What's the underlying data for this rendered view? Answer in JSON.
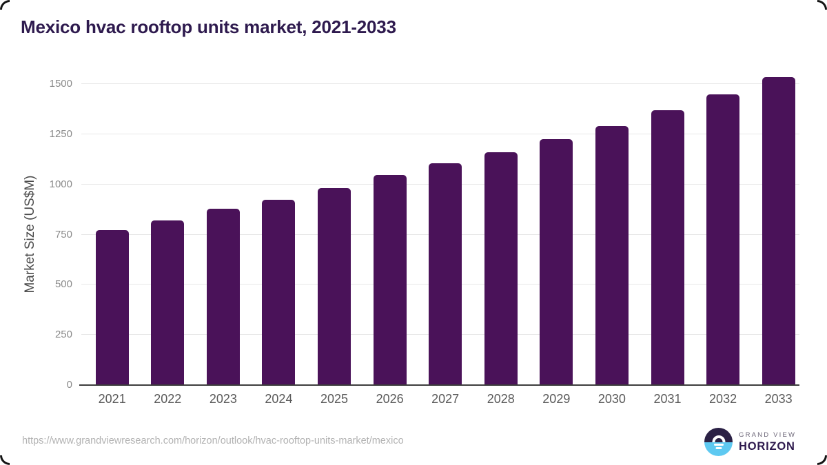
{
  "title": "Mexico hvac rooftop units market, 2021-2033",
  "source_url": "https://www.grandviewresearch.com/horizon/outlook/hvac-rooftop-units-market/mexico",
  "logo": {
    "line1": "GRAND VIEW",
    "line2": "HORIZON",
    "mark": "sunrise-over-horizon-icon"
  },
  "colors": {
    "bar_color": "#4a1259",
    "title_color": "#2e1a4e",
    "grid_color": "#e7e7e7",
    "axis_color": "#3c3c3c",
    "ytick_color": "#8a8a8a",
    "xlabel_color": "#5a5a5a",
    "ylabel_color": "#4a4a4a",
    "url_color": "#b2b2b2",
    "logo_dark": "#2b2145",
    "logo_blue": "#5ec9f1",
    "logo_gray": "#6b6577"
  },
  "chart_data": {
    "type": "bar",
    "title": "Mexico hvac rooftop units market, 2021-2033",
    "xlabel": "",
    "ylabel": "Market Size (US$M)",
    "categories": [
      "2021",
      "2022",
      "2023",
      "2024",
      "2025",
      "2026",
      "2027",
      "2028",
      "2029",
      "2030",
      "2031",
      "2032",
      "2033"
    ],
    "values": [
      772,
      821,
      879,
      925,
      981,
      1048,
      1104,
      1160,
      1224,
      1289,
      1368,
      1449,
      1536
    ],
    "yticks": [
      0,
      250,
      500,
      750,
      1000,
      1250,
      1500
    ],
    "ylim": [
      0,
      1575
    ],
    "grid": "horizontal",
    "legend": "none",
    "bar_corner_radius": "rounded-top"
  }
}
